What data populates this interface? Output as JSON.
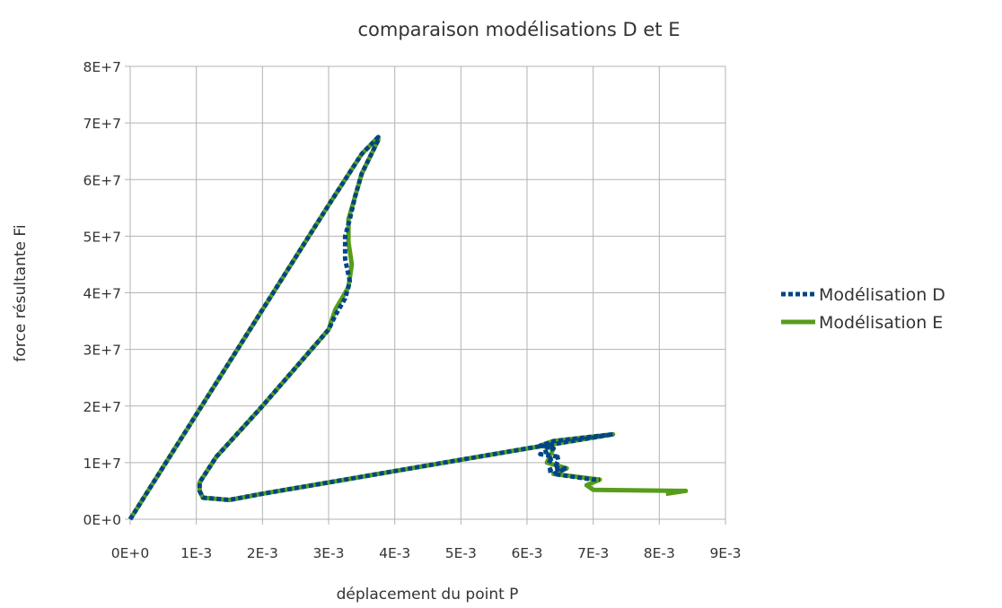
{
  "chart_data": {
    "type": "line",
    "title": "comparaison modélisations D et E",
    "xlabel": "déplacement du point P",
    "ylabel": "force résultante Fi",
    "xlim": [
      0,
      0.009
    ],
    "ylim": [
      0,
      80000000
    ],
    "x_ticks": [
      0,
      0.001,
      0.002,
      0.003,
      0.004,
      0.005,
      0.006,
      0.007,
      0.008,
      0.009
    ],
    "x_tick_labels": [
      "0E+0",
      "1E-3",
      "2E-3",
      "3E-3",
      "4E-3",
      "5E-3",
      "6E-3",
      "7E-3",
      "8E-3",
      "9E-3"
    ],
    "y_ticks": [
      0,
      10000000,
      20000000,
      30000000,
      40000000,
      50000000,
      60000000,
      70000000,
      80000000
    ],
    "y_tick_labels": [
      "0E+0",
      "1E+7",
      "2E+7",
      "3E+7",
      "4E+7",
      "5E+7",
      "6E+7",
      "7E+7",
      "8E+7"
    ],
    "grid": true,
    "legend_position": "right",
    "series": [
      {
        "name": "Modélisation D",
        "color": "#004586",
        "style": "dashed",
        "x": [
          0,
          0.001,
          0.002,
          0.003,
          0.0035,
          0.00375,
          0.00375,
          0.0035,
          0.0034,
          0.00332,
          0.00325,
          0.00325,
          0.00332,
          0.00325,
          0.0031,
          0.003,
          0.002,
          0.0013,
          0.00105,
          0.00105,
          0.0011,
          0.0015,
          0.002,
          0.003,
          0.004,
          0.005,
          0.006,
          0.0073,
          0.0064,
          0.0062,
          0.0064,
          0.0062,
          0.0065,
          0.0063,
          0.0065,
          0.0063,
          0.0066,
          0.0064,
          0.007,
          0.0071
        ],
        "y": [
          0,
          18500000,
          37000000,
          55500000,
          64500000,
          67500000,
          67000000,
          61000000,
          57000000,
          53000000,
          50000000,
          46000000,
          42000000,
          39000000,
          36000000,
          33500000,
          20000000,
          11000000,
          6500000,
          5000000,
          3800000,
          3400000,
          4500000,
          6500000,
          8500000,
          10500000,
          12500000,
          15000000,
          13800000,
          13000000,
          12500000,
          11500000,
          11000000,
          10500000,
          9500000,
          8500000,
          9000000,
          8000000,
          7000000,
          7000000
        ]
      },
      {
        "name": "Modélisation E",
        "color": "#579d1c",
        "style": "solid",
        "x": [
          0,
          0.001,
          0.002,
          0.003,
          0.0035,
          0.00375,
          0.00375,
          0.0035,
          0.0034,
          0.0033,
          0.0033,
          0.00335,
          0.0033,
          0.0031,
          0.003,
          0.002,
          0.0013,
          0.00105,
          0.00105,
          0.0011,
          0.0015,
          0.002,
          0.003,
          0.004,
          0.005,
          0.006,
          0.0073,
          0.0064,
          0.0062,
          0.0064,
          0.0063,
          0.0066,
          0.0064,
          0.0071,
          0.007,
          0.0069,
          0.007,
          0.0083,
          0.0084,
          0.0081
        ],
        "y": [
          0,
          18500000,
          37000000,
          55500000,
          64500000,
          67500000,
          67000000,
          61000000,
          57000000,
          53000000,
          49000000,
          45000000,
          41000000,
          37000000,
          33500000,
          20000000,
          11000000,
          6500000,
          5000000,
          3800000,
          3400000,
          4500000,
          6500000,
          8500000,
          10500000,
          12500000,
          15000000,
          13800000,
          13000000,
          12500000,
          10000000,
          9000000,
          8000000,
          7000000,
          6500000,
          6000000,
          5200000,
          5000000,
          5000000,
          4500000
        ]
      }
    ]
  }
}
